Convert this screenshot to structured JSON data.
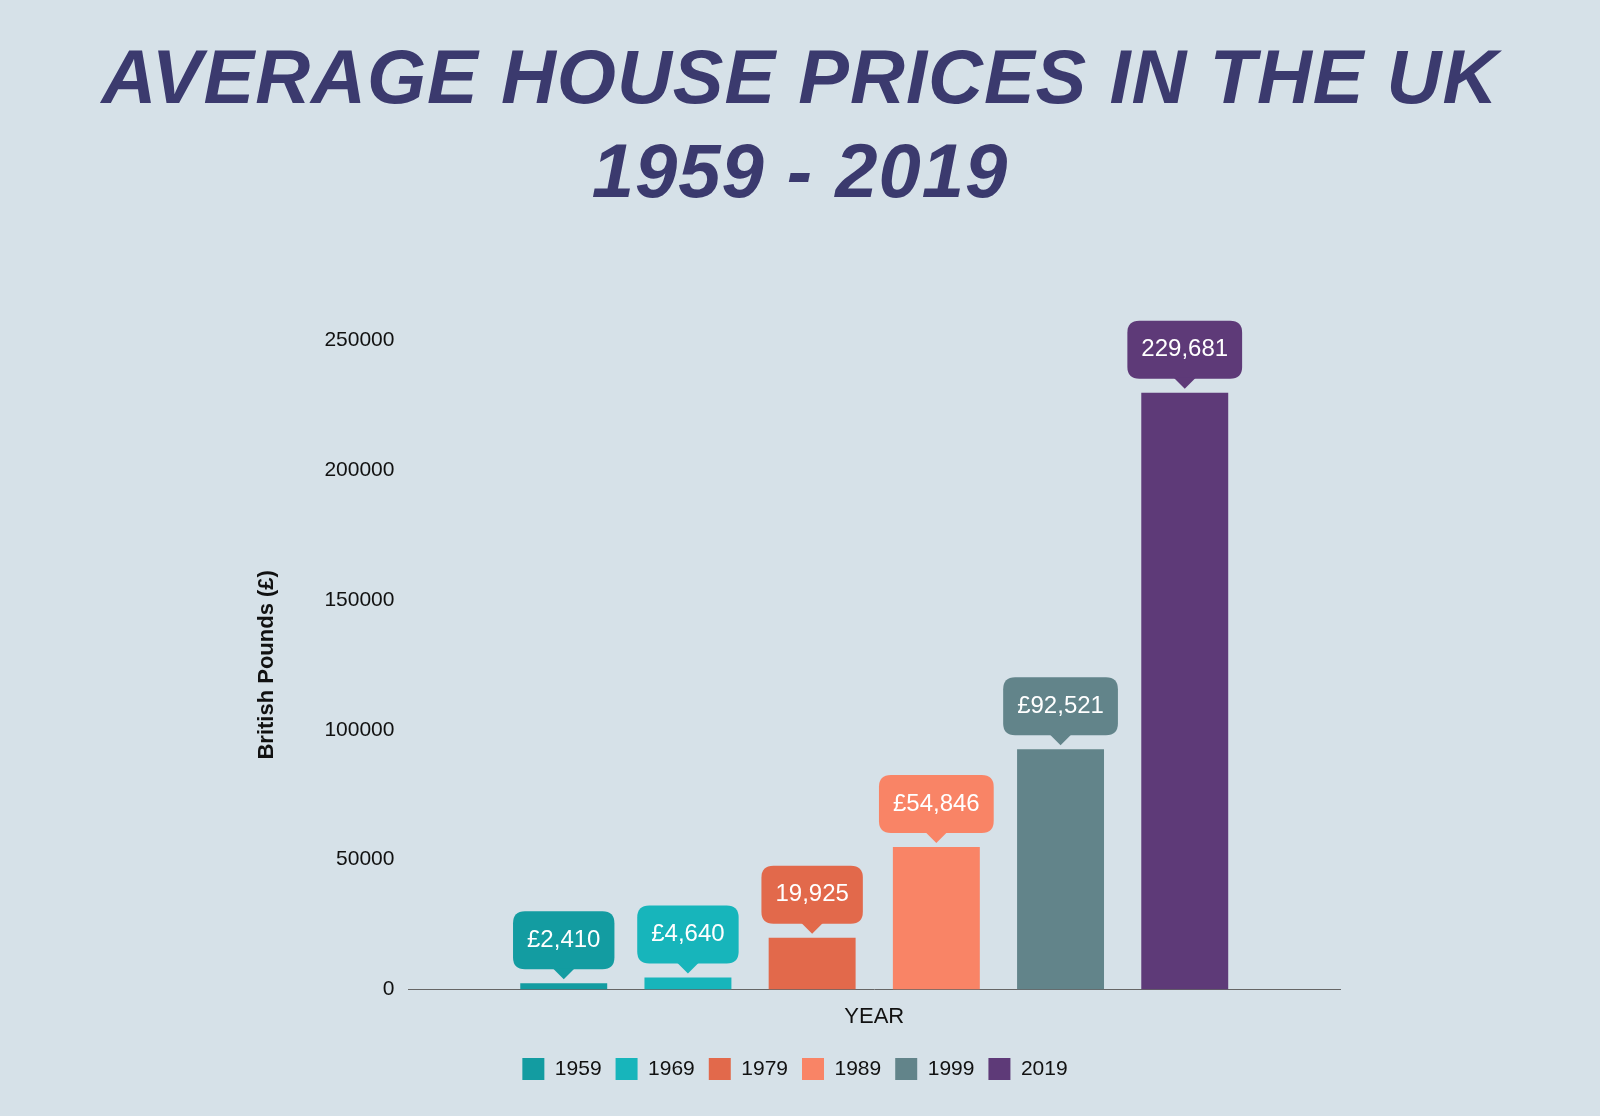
{
  "chart_data": {
    "type": "bar",
    "title": "AVERAGE HOUSE PRICES IN THE UK 1959 - 2019",
    "x_label": "YEAR",
    "y_label": "British Pounds (£)",
    "categories": [
      null
    ],
    "series": [
      {
        "name": "1959",
        "color": "#139ca1",
        "values": [
          2410
        ],
        "value_labels": [
          "£2,410"
        ]
      },
      {
        "name": "1969",
        "color": "#17b5bb",
        "values": [
          4640
        ],
        "value_labels": [
          "£4,640"
        ]
      },
      {
        "name": "1979",
        "color": "#e2694b",
        "values": [
          19925
        ],
        "value_labels": [
          "19,925"
        ]
      },
      {
        "name": "1989",
        "color": "#f98466",
        "values": [
          54846
        ],
        "value_labels": [
          "£54,846"
        ]
      },
      {
        "name": "1999",
        "color": "#62848a",
        "values": [
          92521
        ],
        "value_labels": [
          "£92,521"
        ]
      },
      {
        "name": "2019",
        "color": "#5e3a78",
        "values": [
          229681
        ],
        "value_labels": [
          "229,681"
        ]
      }
    ],
    "ylim": [
      0,
      250000
    ],
    "yticks": [
      0,
      50000,
      100000,
      150000,
      200000,
      250000
    ],
    "grid": false,
    "legend": "bottom",
    "data_labels": true,
    "tick_labels": "y"
  }
}
